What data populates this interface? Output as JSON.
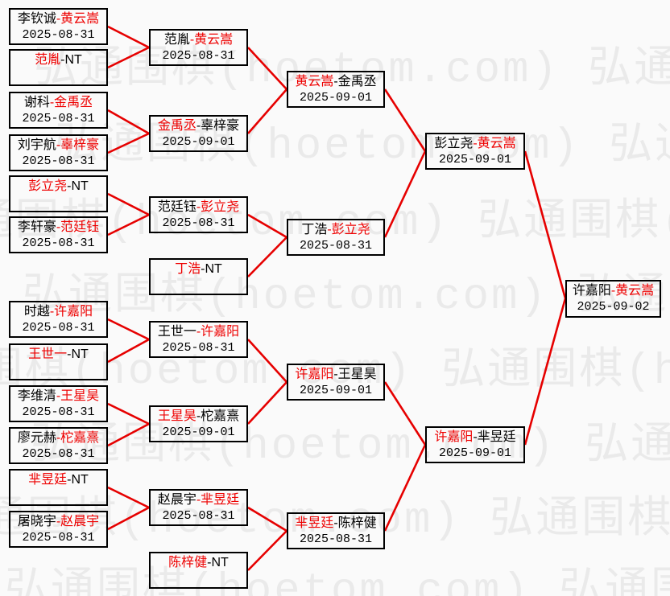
{
  "sep": "-",
  "watermark": {
    "text": "弘通围棋(hoetom.com)"
  },
  "colors": {
    "winner_text": "#ee0000",
    "loser_text": "#000000",
    "connector_line": "#e60000",
    "box_border": "#000000",
    "watermark_gray": "#eaeaea",
    "background": "#fafafa"
  },
  "rounds": [
    {
      "matches": [
        {
          "p1": "李钦诚",
          "p2": "黄云嵩",
          "date": "2025-08-31",
          "p1_color": "#000000",
          "p2_color": "#ee0000"
        },
        {
          "p1": "范胤",
          "p2": "NT",
          "date": "",
          "p1_color": "#ee0000",
          "p2_color": "#000000"
        },
        {
          "p1": "谢科",
          "p2": "金禹丞",
          "date": "2025-08-31",
          "p1_color": "#000000",
          "p2_color": "#ee0000"
        },
        {
          "p1": "刘宇航",
          "p2": "辜梓豪",
          "date": "2025-08-31",
          "p1_color": "#000000",
          "p2_color": "#ee0000"
        },
        {
          "p1": "彭立尧",
          "p2": "NT",
          "date": "",
          "p1_color": "#ee0000",
          "p2_color": "#000000"
        },
        {
          "p1": "李轩豪",
          "p2": "范廷钰",
          "date": "2025-08-31",
          "p1_color": "#000000",
          "p2_color": "#ee0000"
        },
        {
          "p1": "时越",
          "p2": "许嘉阳",
          "date": "2025-08-31",
          "p1_color": "#000000",
          "p2_color": "#ee0000"
        },
        {
          "p1": "王世一",
          "p2": "NT",
          "date": "",
          "p1_color": "#ee0000",
          "p2_color": "#000000"
        },
        {
          "p1": "李维清",
          "p2": "王星昊",
          "date": "2025-08-31",
          "p1_color": "#000000",
          "p2_color": "#ee0000"
        },
        {
          "p1": "廖元赫",
          "p2": "柁嘉熹",
          "date": "2025-08-31",
          "p1_color": "#000000",
          "p2_color": "#ee0000"
        },
        {
          "p1": "芈昱廷",
          "p2": "NT",
          "date": "",
          "p1_color": "#ee0000",
          "p2_color": "#000000"
        },
        {
          "p1": "屠晓宇",
          "p2": "赵晨宇",
          "date": "2025-08-31",
          "p1_color": "#000000",
          "p2_color": "#ee0000"
        }
      ]
    },
    {
      "matches": [
        {
          "p1": "范胤",
          "p2": "黄云嵩",
          "date": "2025-08-31",
          "p1_color": "#000000",
          "p2_color": "#ee0000"
        },
        {
          "p1": "金禹丞",
          "p2": "辜梓豪",
          "date": "2025-09-01",
          "p1_color": "#ee0000",
          "p2_color": "#000000"
        },
        {
          "p1": "范廷钰",
          "p2": "彭立尧",
          "date": "2025-08-31",
          "p1_color": "#000000",
          "p2_color": "#ee0000"
        },
        {
          "p1": "丁浩",
          "p2": "NT",
          "date": "",
          "p1_color": "#ee0000",
          "p2_color": "#000000"
        },
        {
          "p1": "王世一",
          "p2": "许嘉阳",
          "date": "2025-08-31",
          "p1_color": "#000000",
          "p2_color": "#ee0000"
        },
        {
          "p1": "王星昊",
          "p2": "柁嘉熹",
          "date": "2025-09-01",
          "p1_color": "#ee0000",
          "p2_color": "#000000"
        },
        {
          "p1": "赵晨宇",
          "p2": "芈昱廷",
          "date": "2025-08-31",
          "p1_color": "#000000",
          "p2_color": "#ee0000"
        },
        {
          "p1": "陈梓健",
          "p2": "NT",
          "date": "",
          "p1_color": "#ee0000",
          "p2_color": "#000000"
        }
      ]
    },
    {
      "matches": [
        {
          "p1": "黄云嵩",
          "p2": "金禹丞",
          "date": "2025-09-01",
          "p1_color": "#ee0000",
          "p2_color": "#000000"
        },
        {
          "p1": "丁浩",
          "p2": "彭立尧",
          "date": "2025-08-31",
          "p1_color": "#000000",
          "p2_color": "#ee0000"
        },
        {
          "p1": "许嘉阳",
          "p2": "王星昊",
          "date": "2025-09-01",
          "p1_color": "#ee0000",
          "p2_color": "#000000"
        },
        {
          "p1": "芈昱廷",
          "p2": "陈梓健",
          "date": "2025-08-31",
          "p1_color": "#ee0000",
          "p2_color": "#000000"
        }
      ]
    },
    {
      "matches": [
        {
          "p1": "彭立尧",
          "p2": "黄云嵩",
          "date": "2025-09-01",
          "p1_color": "#000000",
          "p2_color": "#ee0000"
        },
        {
          "p1": "许嘉阳",
          "p2": "芈昱廷",
          "date": "2025-09-01",
          "p1_color": "#ee0000",
          "p2_color": "#000000"
        }
      ]
    },
    {
      "matches": [
        {
          "p1": "许嘉阳",
          "p2": "黄云嵩",
          "date": "2025-09-02",
          "p1_color": "#000000",
          "p2_color": "#ee0000"
        }
      ]
    }
  ]
}
